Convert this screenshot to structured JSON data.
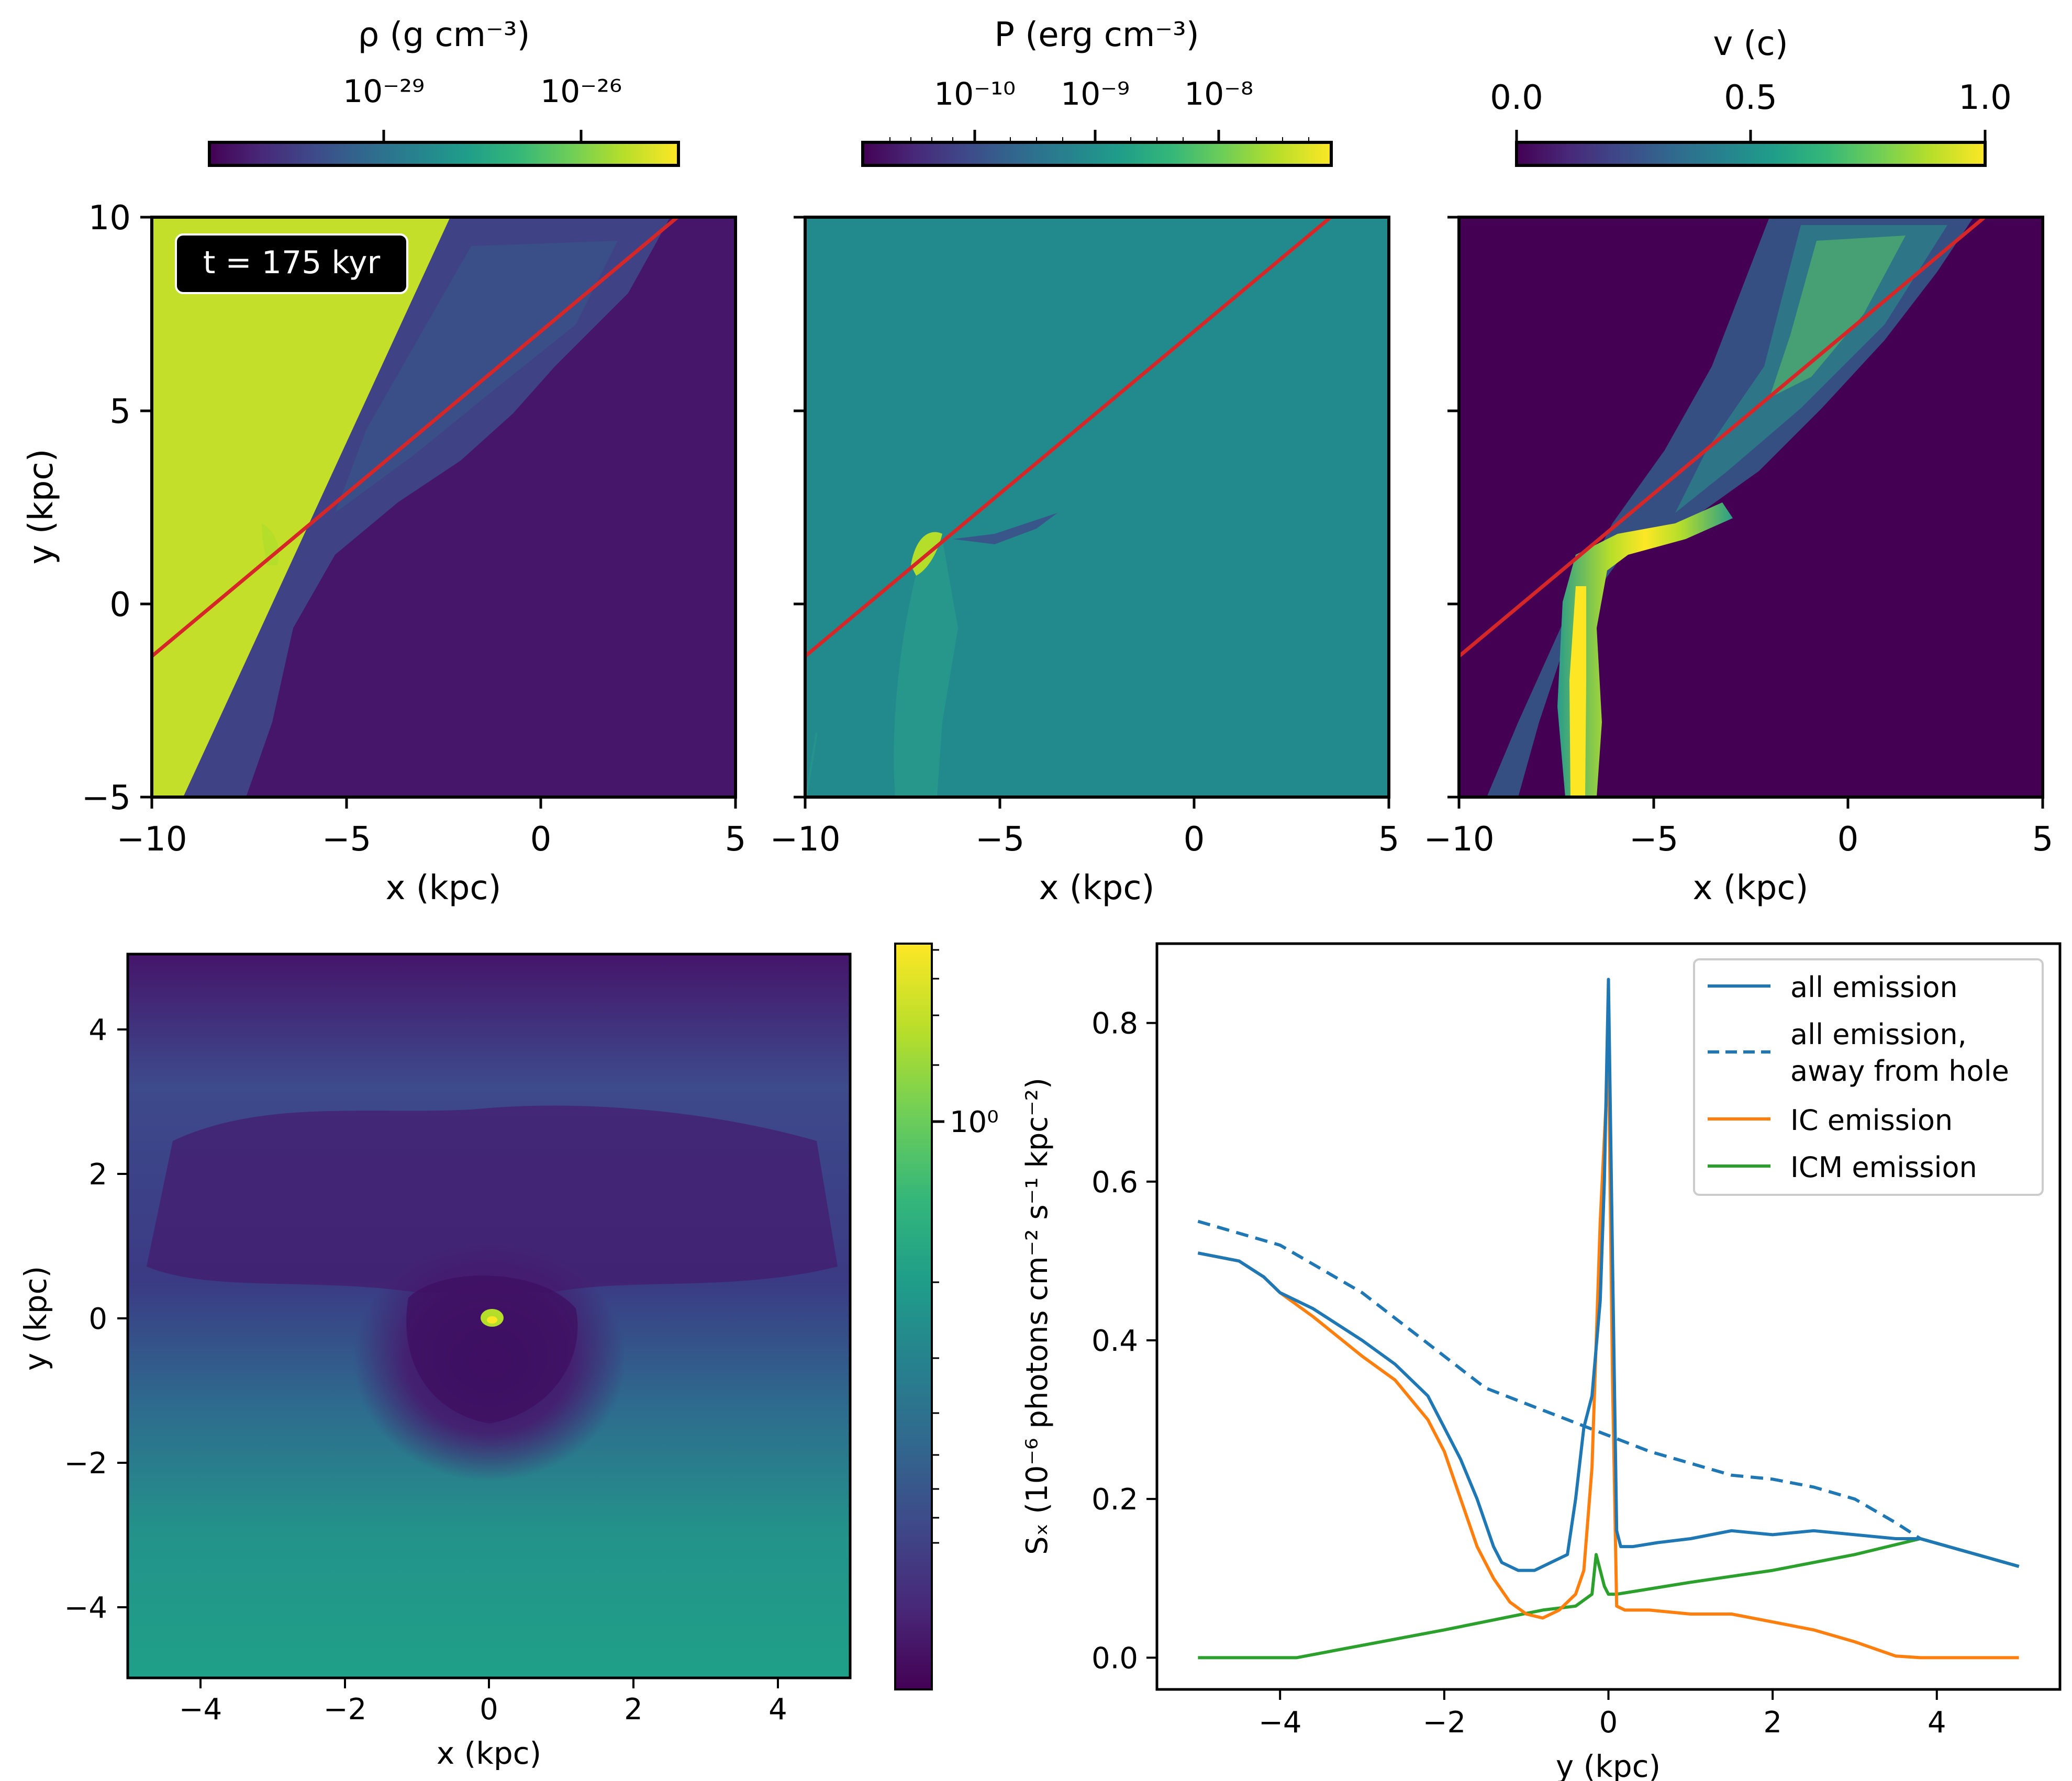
{
  "colors": {
    "viridis": [
      "#440154",
      "#482878",
      "#3e4989",
      "#31688e",
      "#26828e",
      "#1f9e89",
      "#35b779",
      "#6ece58",
      "#b5de2b",
      "#fde725"
    ],
    "ref_line": "#d62728",
    "all_emission": "#1f77b4",
    "ic_emission": "#ff7f0e",
    "icm_emission": "#2ca02c",
    "dense_gas": "#c3df2a",
    "bg_density": "#45166a",
    "bg_pressure": "#228a8d",
    "bg_velocity": "#440154"
  },
  "top_panels": {
    "time_label": "t = 175 kyr",
    "x_label": "x (kpc)",
    "y_label": "y (kpc)",
    "x_ticks": [
      "−10",
      "−5",
      "0",
      "5"
    ],
    "y_ticks": [
      "10",
      "5",
      "0",
      "−5"
    ],
    "colorbars": [
      {
        "label": "ρ (g cm⁻³)",
        "ticks": [
          "10⁻²⁹",
          "10⁻²⁶"
        ]
      },
      {
        "label": "P (erg cm⁻³)",
        "ticks": [
          "10⁻¹⁰",
          "10⁻⁹",
          "10⁻⁸"
        ]
      },
      {
        "label": "v (c)",
        "ticks": [
          "0.0",
          "0.5",
          "1.0"
        ]
      }
    ]
  },
  "map_panel": {
    "x_label": "x (kpc)",
    "y_label": "y (kpc)",
    "x_ticks": [
      "−4",
      "−2",
      "0",
      "2",
      "4"
    ],
    "y_ticks": [
      "4",
      "2",
      "0",
      "−2",
      "−4"
    ],
    "colorbar_tick": "10⁰"
  },
  "chart_data": {
    "type": "line",
    "title": "",
    "xlabel": "y (kpc)",
    "ylabel": "Sₓ (10⁻⁶ photons cm⁻² s⁻¹ kpc⁻²)",
    "xlim": [
      -5.5,
      5.5
    ],
    "ylim": [
      -0.04,
      0.9
    ],
    "x_ticks": [
      -4,
      -2,
      0,
      2,
      4
    ],
    "x_tick_labels": [
      "−4",
      "−2",
      "0",
      "2",
      "4"
    ],
    "y_ticks": [
      0.0,
      0.2,
      0.4,
      0.6,
      0.8
    ],
    "y_tick_labels": [
      "0.0",
      "0.2",
      "0.4",
      "0.6",
      "0.8"
    ],
    "legend_position": "top-right",
    "series": [
      {
        "name": "all emission",
        "style": "solid",
        "color": "#1f77b4",
        "x": [
          -5.0,
          -4.5,
          -4.2,
          -4.0,
          -3.6,
          -3.0,
          -2.6,
          -2.2,
          -2.0,
          -1.8,
          -1.6,
          -1.4,
          -1.3,
          -1.1,
          -0.9,
          -0.7,
          -0.5,
          -0.4,
          -0.3,
          -0.2,
          -0.1,
          -0.05,
          0.0,
          0.05,
          0.1,
          0.15,
          0.3,
          0.6,
          1.0,
          1.5,
          2.0,
          2.5,
          3.0,
          3.5,
          3.8,
          5.0
        ],
        "values": [
          0.51,
          0.5,
          0.48,
          0.46,
          0.44,
          0.4,
          0.37,
          0.33,
          0.29,
          0.25,
          0.2,
          0.14,
          0.12,
          0.11,
          0.11,
          0.12,
          0.13,
          0.2,
          0.29,
          0.33,
          0.45,
          0.6,
          0.855,
          0.5,
          0.16,
          0.14,
          0.14,
          0.145,
          0.15,
          0.16,
          0.155,
          0.16,
          0.155,
          0.15,
          0.15,
          0.115
        ]
      },
      {
        "name": "all emission, away from hole",
        "style": "dashed",
        "color": "#1f77b4",
        "x": [
          -5.0,
          -4.0,
          -3.5,
          -3.0,
          -2.5,
          -2.0,
          -1.5,
          -1.0,
          -0.5,
          0.0,
          0.5,
          1.0,
          1.5,
          2.0,
          2.5,
          3.0,
          3.5,
          3.8,
          5.0
        ],
        "values": [
          0.55,
          0.52,
          0.49,
          0.46,
          0.42,
          0.38,
          0.34,
          0.32,
          0.3,
          0.28,
          0.26,
          0.245,
          0.23,
          0.225,
          0.215,
          0.2,
          0.17,
          0.15,
          0.115
        ]
      },
      {
        "name": "IC emission",
        "style": "solid",
        "color": "#ff7f0e",
        "x": [
          -5.0,
          -4.5,
          -4.2,
          -4.0,
          -3.6,
          -3.0,
          -2.6,
          -2.2,
          -2.0,
          -1.8,
          -1.6,
          -1.4,
          -1.2,
          -1.0,
          -0.8,
          -0.6,
          -0.4,
          -0.3,
          -0.2,
          -0.1,
          0.0,
          0.05,
          0.1,
          0.2,
          0.5,
          1.0,
          1.5,
          2.0,
          2.5,
          3.0,
          3.5,
          3.8,
          5.0
        ],
        "values": [
          0.51,
          0.5,
          0.48,
          0.46,
          0.43,
          0.38,
          0.35,
          0.3,
          0.26,
          0.2,
          0.14,
          0.1,
          0.07,
          0.055,
          0.05,
          0.06,
          0.08,
          0.11,
          0.24,
          0.55,
          0.76,
          0.35,
          0.065,
          0.06,
          0.06,
          0.055,
          0.055,
          0.045,
          0.035,
          0.02,
          0.002,
          0.0,
          0.0
        ]
      },
      {
        "name": "ICM emission",
        "style": "solid",
        "color": "#2ca02c",
        "x": [
          -5.0,
          -3.8,
          -2.0,
          -0.8,
          -0.4,
          -0.2,
          -0.15,
          -0.05,
          0.0,
          0.1,
          1.0,
          2.0,
          3.0,
          3.8,
          5.0
        ],
        "values": [
          0.0,
          0.0,
          0.035,
          0.06,
          0.065,
          0.08,
          0.13,
          0.09,
          0.08,
          0.08,
          0.095,
          0.11,
          0.13,
          0.15,
          0.115
        ]
      }
    ]
  }
}
